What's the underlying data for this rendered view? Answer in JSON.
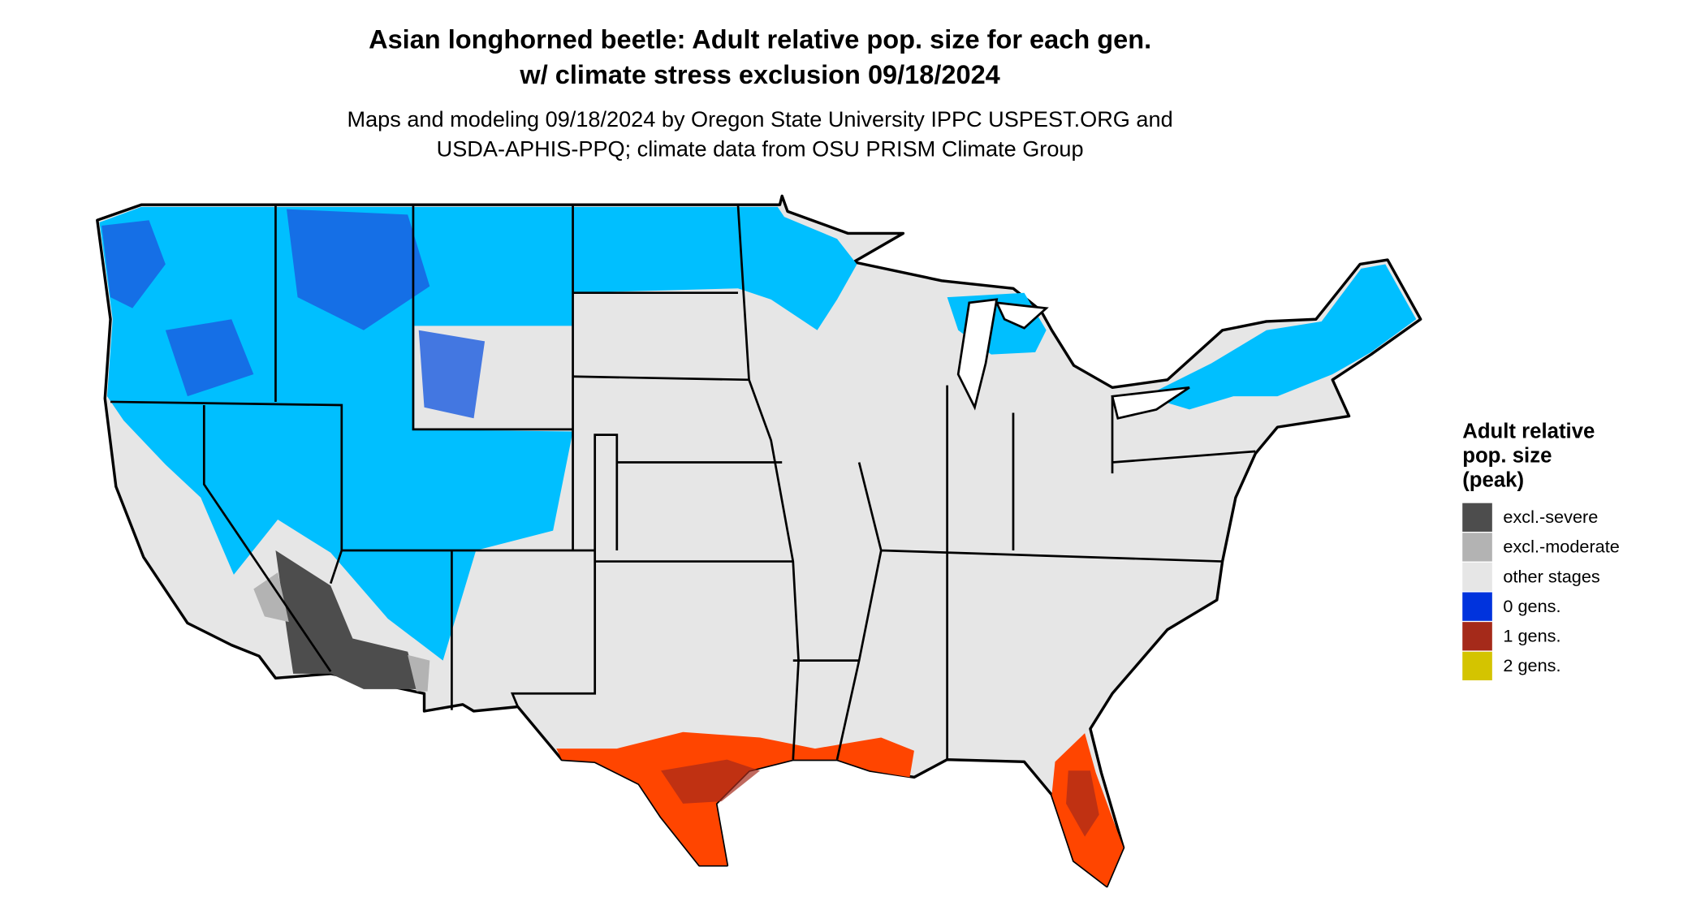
{
  "title": [
    "Asian longhorned beetle: Adult relative pop. size for each gen.",
    "w/ climate stress exclusion 09/18/2024"
  ],
  "subtitle": [
    "Maps and modeling 09/18/2024 by Oregon State University IPPC USPEST.ORG and",
    "USDA-APHIS-PPQ; climate data from OSU PRISM Climate Group"
  ],
  "legend": {
    "title": [
      "Adult relative",
      "pop. size",
      "(peak)"
    ],
    "items": [
      {
        "label": "excl.-severe",
        "color": "#4d4d4d"
      },
      {
        "label": "excl.-moderate",
        "color": "#b3b3b3"
      },
      {
        "label": "other stages",
        "color": "#e6e6e6"
      },
      {
        "label": "0 gens.",
        "color": "#0033dd"
      },
      {
        "label": "1 gens.",
        "color": "#a52a1a"
      },
      {
        "label": "2 gens.",
        "color": "#d4c400"
      }
    ]
  }
}
